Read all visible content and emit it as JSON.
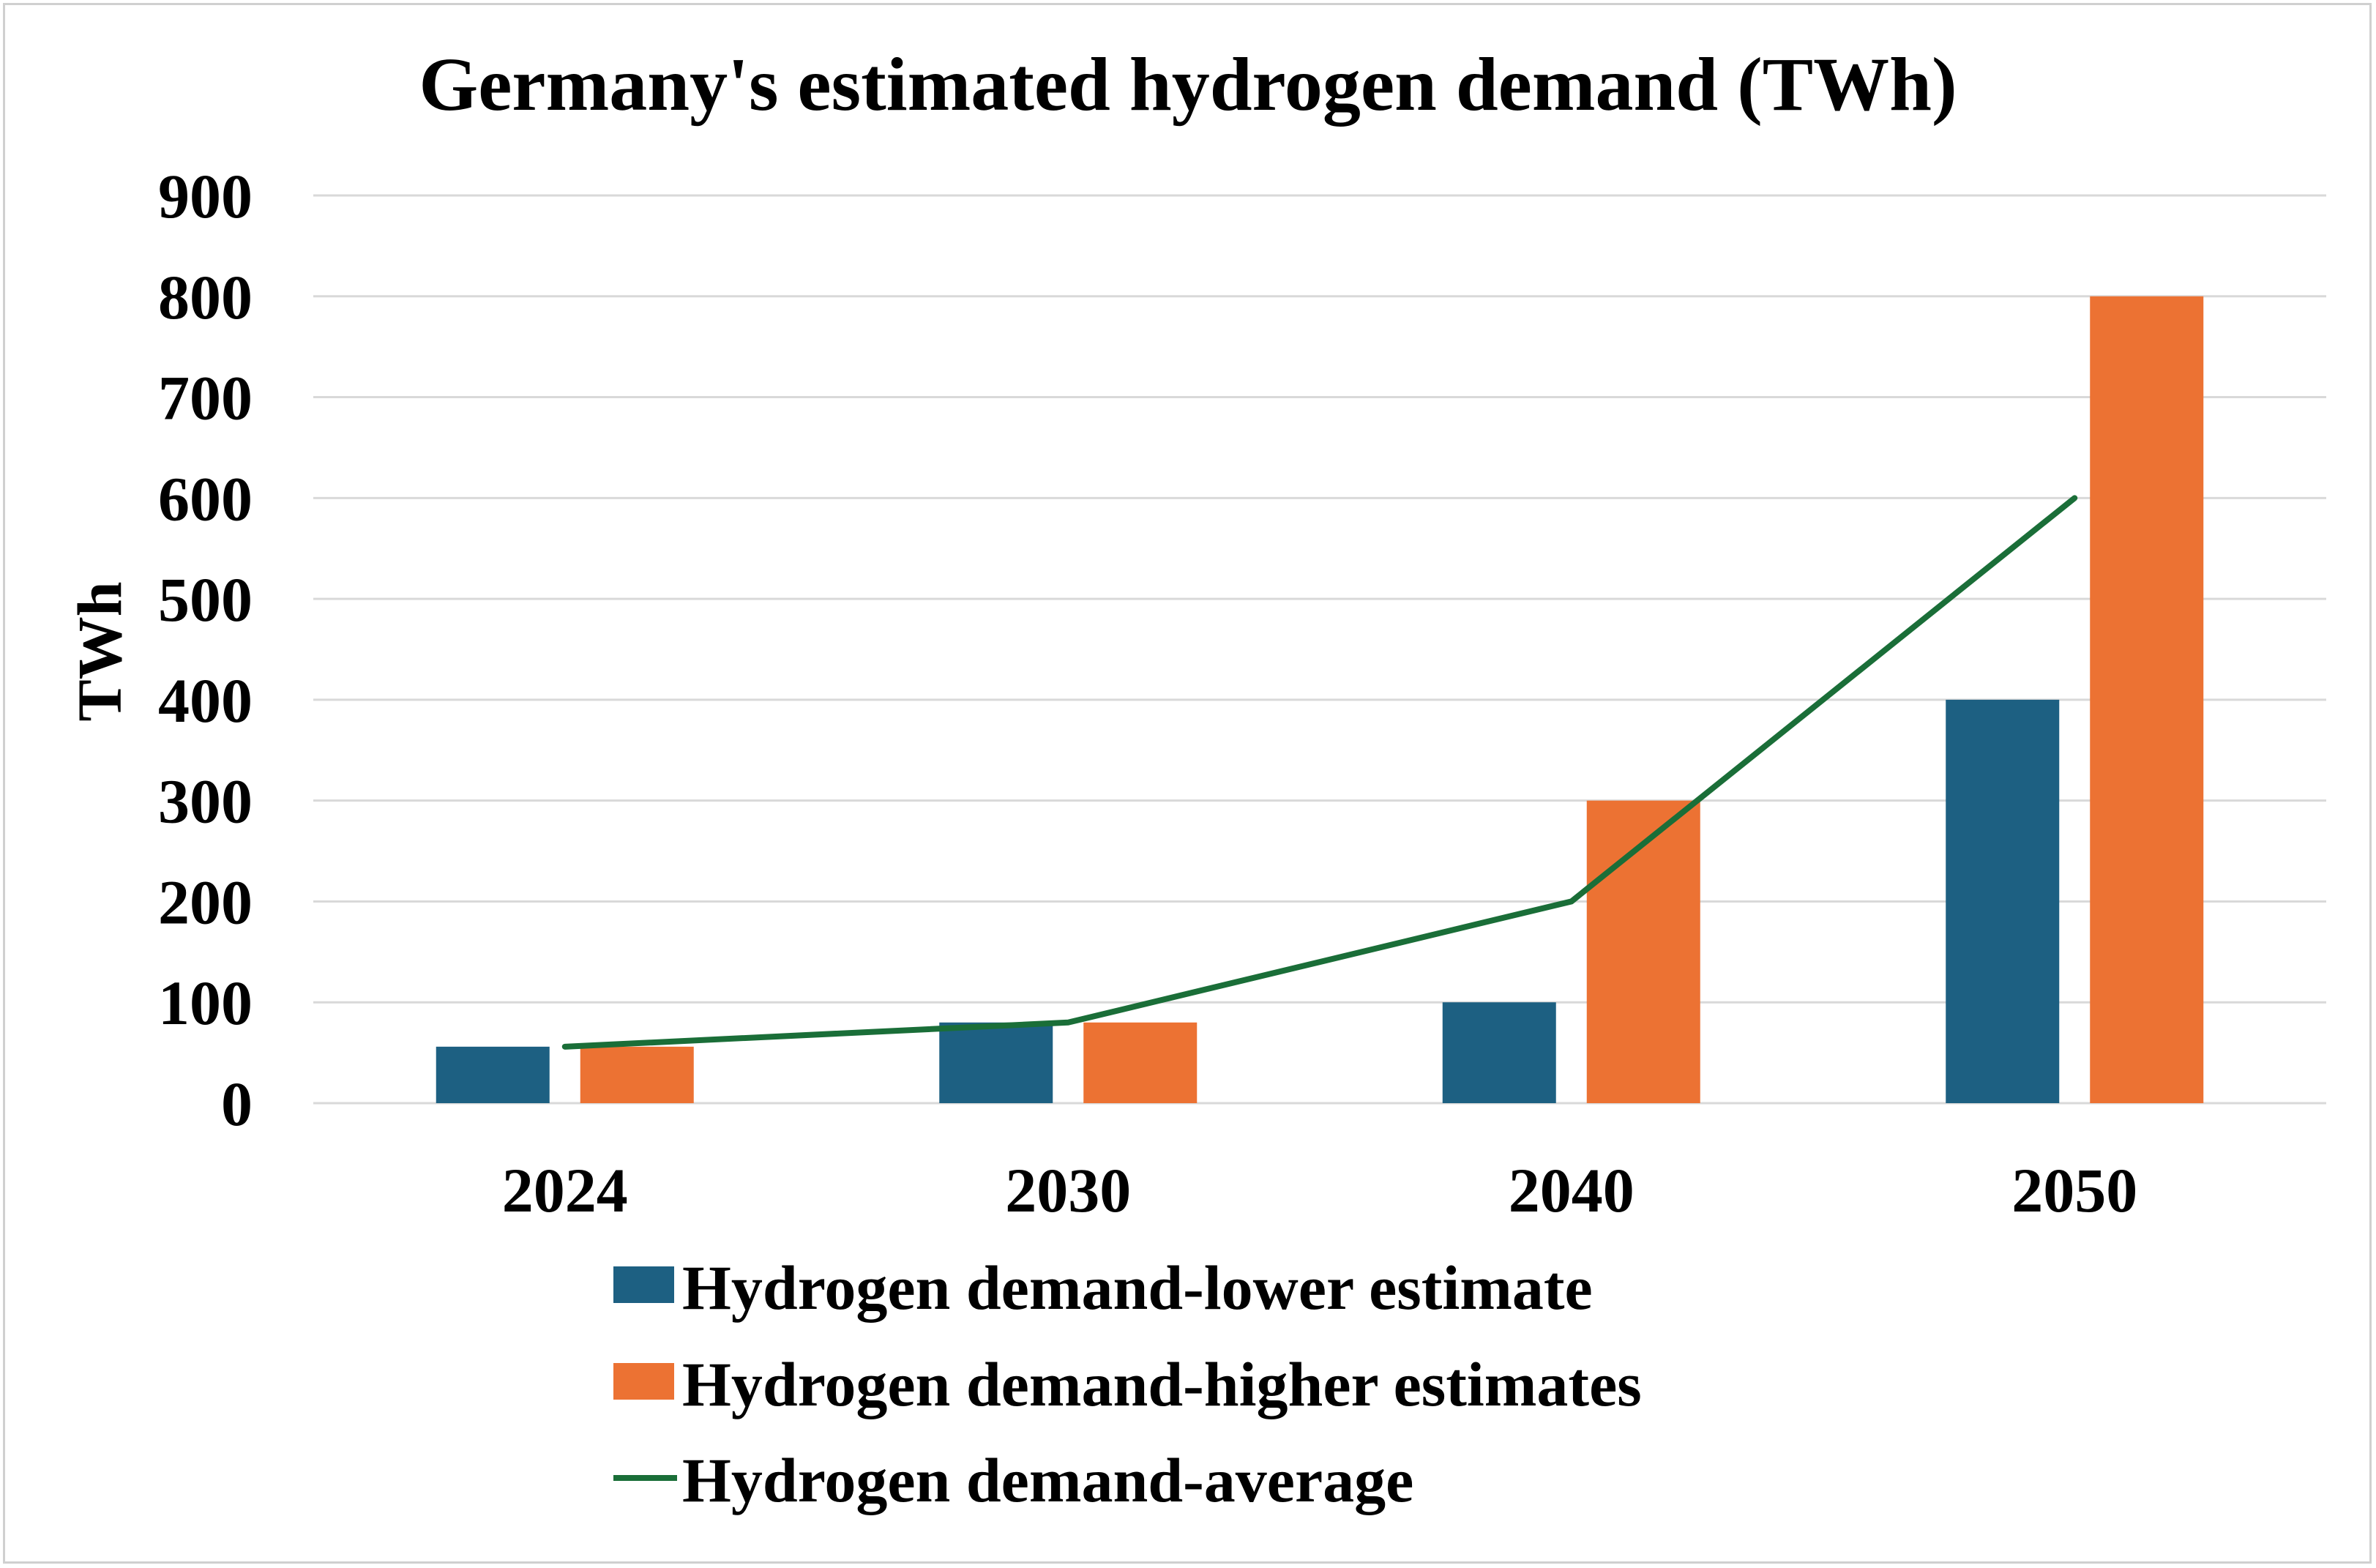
{
  "chart_data": {
    "type": "bar",
    "title": "Germany's estimated hydrogen demand (TWh)",
    "xlabel": "",
    "ylabel": "TWh",
    "ylim": [
      0,
      900
    ],
    "yticks": [
      0,
      100,
      200,
      300,
      400,
      500,
      600,
      700,
      800,
      900
    ],
    "grid": true,
    "legend_placement": "bottom",
    "categories": [
      "2024",
      "2030",
      "2040",
      "2050"
    ],
    "series": [
      {
        "name": "Hydrogen demand-lower estimate",
        "type": "bar",
        "color": "#1d6082",
        "values": [
          56,
          80,
          100,
          400
        ]
      },
      {
        "name": " Hydrogen demand-higher estimates",
        "type": "bar",
        "color": "#ec7233",
        "values": [
          56,
          80,
          300,
          800
        ]
      },
      {
        "name": "Hydrogen demand-average",
        "type": "line",
        "color": "#1a6e38",
        "values": [
          56,
          80,
          200,
          600
        ]
      }
    ]
  }
}
